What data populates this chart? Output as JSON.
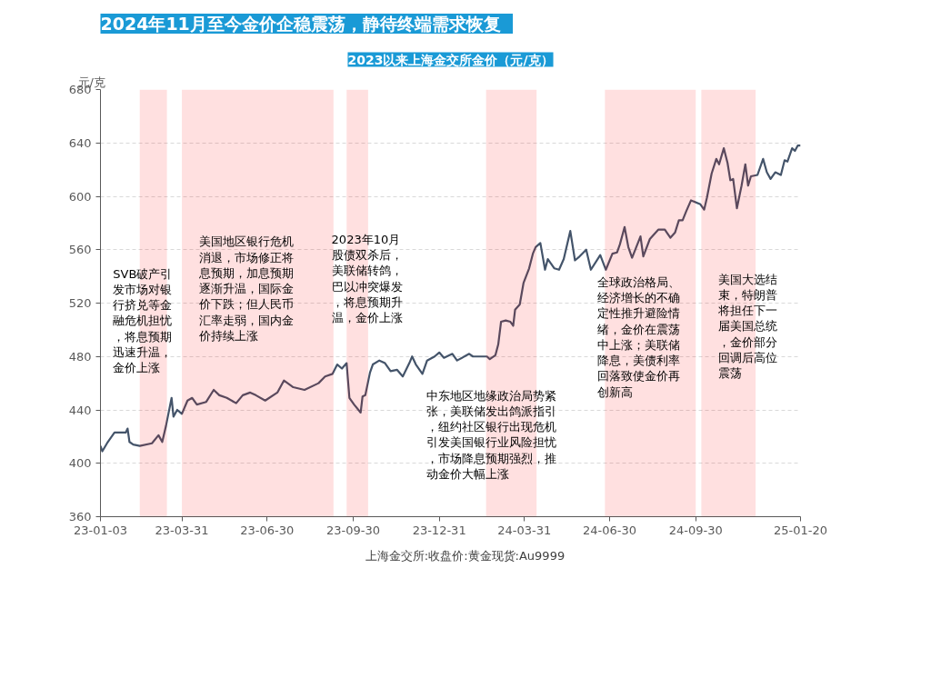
{
  "chart_data": {
    "type": "line",
    "title": "2024年11月至今金价企稳震荡，静待终端需求恢复",
    "subtitle": "2023以来上海金交所金价（元/克）",
    "ylabel": "元/克",
    "x": [
      "2023-01-03",
      "2023-01-05",
      "2023-01-10",
      "2023-01-18",
      "2023-01-30",
      "2023-02-01",
      "2023-02-03",
      "2023-02-07",
      "2023-02-14",
      "2023-02-27",
      "2023-03-06",
      "2023-03-10",
      "2023-03-14",
      "2023-03-20",
      "2023-03-22",
      "2023-03-26",
      "2023-03-31",
      "2023-04-06",
      "2023-04-11",
      "2023-04-16",
      "2023-04-26",
      "2023-05-04",
      "2023-05-10",
      "2023-05-18",
      "2023-05-28",
      "2023-06-04",
      "2023-06-12",
      "2023-06-18",
      "2023-06-28",
      "2023-07-11",
      "2023-07-18",
      "2023-07-28",
      "2023-08-09",
      "2023-08-24",
      "2023-08-31",
      "2023-09-08",
      "2023-09-13",
      "2023-09-18",
      "2023-09-23",
      "2023-09-26",
      "2023-10-01",
      "2023-10-08",
      "2023-10-10",
      "2023-10-13",
      "2023-10-18",
      "2023-10-21",
      "2023-10-28",
      "2023-11-03",
      "2023-11-09",
      "2023-11-16",
      "2023-11-22",
      "2023-11-29",
      "2023-12-02",
      "2023-12-06",
      "2023-12-13",
      "2023-12-18",
      "2023-12-26",
      "2023-12-31",
      "2024-01-05",
      "2024-01-14",
      "2024-01-19",
      "2024-02-01",
      "2024-02-05",
      "2024-02-20",
      "2024-02-23",
      "2024-02-29",
      "2024-03-03",
      "2024-03-06",
      "2024-03-11",
      "2024-03-16",
      "2024-03-19",
      "2024-03-21",
      "2024-03-26",
      "2024-03-30",
      "2024-04-05",
      "2024-04-09",
      "2024-04-12",
      "2024-04-17",
      "2024-04-22",
      "2024-04-25",
      "2024-05-02",
      "2024-05-07",
      "2024-05-12",
      "2024-05-19",
      "2024-05-24",
      "2024-05-29",
      "2024-06-05",
      "2024-06-10",
      "2024-06-20",
      "2024-06-26",
      "2024-07-03",
      "2024-07-08",
      "2024-07-11",
      "2024-07-16",
      "2024-07-20",
      "2024-07-24",
      "2024-08-02",
      "2024-08-05",
      "2024-08-12",
      "2024-08-21",
      "2024-08-28",
      "2024-09-03",
      "2024-09-08",
      "2024-09-12",
      "2024-09-16",
      "2024-09-20",
      "2024-09-25",
      "2024-10-05",
      "2024-10-09",
      "2024-10-12",
      "2024-10-17",
      "2024-10-22",
      "2024-10-25",
      "2024-10-30",
      "2024-11-03",
      "2024-11-06",
      "2024-11-09",
      "2024-11-13",
      "2024-11-18",
      "2024-11-22",
      "2024-11-25",
      "2024-11-28",
      "2024-12-05",
      "2024-12-11",
      "2024-12-15",
      "2024-12-19",
      "2024-12-24",
      "2024-12-30",
      "2025-01-03",
      "2025-01-06",
      "2025-01-11",
      "2025-01-14",
      "2025-01-17",
      "2025-01-20"
    ],
    "series": [
      {
        "name": "上海金交所:收盘价:黄金现货:Au9999",
        "color": "#44546a",
        "values": [
          413,
          409,
          415,
          423,
          423,
          426,
          416,
          414,
          413,
          415,
          421,
          416,
          428,
          449,
          435,
          440,
          437,
          447,
          449,
          444,
          446,
          455,
          451,
          449,
          445,
          451,
          453,
          451,
          447,
          453,
          462,
          457,
          455,
          460,
          465,
          467,
          474,
          471,
          475,
          449,
          444,
          438,
          450,
          451,
          468,
          474,
          477,
          475,
          469,
          470,
          465,
          475,
          480,
          474,
          467,
          477,
          480,
          483,
          479,
          482,
          477,
          482,
          480,
          480,
          478,
          481,
          489,
          506,
          507,
          506,
          503,
          515,
          519,
          535,
          546,
          557,
          562,
          565,
          545,
          553,
          546,
          545,
          553,
          574,
          552,
          555,
          560,
          545,
          556,
          545,
          557,
          558,
          564,
          577,
          562,
          554,
          570,
          555,
          568,
          575,
          575,
          569,
          573,
          582,
          582,
          589,
          597,
          594,
          590,
          599,
          617,
          628,
          624,
          636,
          625,
          612,
          613,
          591,
          608,
          624,
          608,
          615,
          616,
          628,
          618,
          613,
          618,
          616,
          627,
          626,
          636,
          634,
          638,
          638
        ]
      }
    ],
    "xlim": [
      "2023-01-03",
      "2025-01-20"
    ],
    "xticks": [
      {
        "value": "2023-01-03",
        "label": "23-01-03"
      },
      {
        "value": "2023-03-31",
        "label": "23-03-31"
      },
      {
        "value": "2023-06-30",
        "label": "23-06-30"
      },
      {
        "value": "2023-09-30",
        "label": "23-09-30"
      },
      {
        "value": "2023-12-31",
        "label": "23-12-31"
      },
      {
        "value": "2024-03-31",
        "label": "24-03-31"
      },
      {
        "value": "2024-06-30",
        "label": "24-06-30"
      },
      {
        "value": "2024-09-30",
        "label": "24-09-30"
      },
      {
        "value": "2025-01-20",
        "label": "25-01-20"
      }
    ],
    "ylim": [
      360,
      680
    ],
    "yticks": [
      360,
      400,
      440,
      480,
      520,
      560,
      600,
      640,
      680
    ],
    "grid": "y",
    "legend": "bottom",
    "marker": "none",
    "line_style": "solid",
    "bands": [
      {
        "axis": "x",
        "from": "2023-02-14",
        "to": "2023-03-15",
        "color": "#ff0000"
      },
      {
        "axis": "x",
        "from": "2023-03-31",
        "to": "2023-09-09",
        "color": "#ff0000"
      },
      {
        "axis": "x",
        "from": "2023-09-23",
        "to": "2023-10-16",
        "color": "#ff0000"
      },
      {
        "axis": "x",
        "from": "2024-02-19",
        "to": "2024-04-13",
        "color": "#ff0000"
      },
      {
        "axis": "x",
        "from": "2024-06-25",
        "to": "2024-09-30",
        "color": "#ff0000"
      },
      {
        "axis": "x",
        "from": "2024-10-06",
        "to": "2024-12-03",
        "color": "#ff0000"
      }
    ],
    "annotations": [
      "SVB破产引发市场对银行挤兑等金融危机担忧，将息预期迅速升温，金价上涨",
      "美国地区银行危机消退，市场修正将息预期，加息预期逐渐升温，国际金价下跌；但人民币汇率走弱，国内金价持续上涨",
      "2023年10月股债双杀后，美联储转鸽，巴以冲突爆发，将息预期升温，金价上涨",
      "中东地区地缘政治局势紧张，美联储发出鸽派指引，纽约社区银行出现危机引发美国银行业风险担忧，市场降息预期强烈，推动金价大幅上涨",
      "全球政治格局、经济增长的不确定性推升避险情绪，金价在震荡中上涨；美联储降息，美债利率回落致使金价再创新高",
      "美国大选结束，特朗普将担任下一届美国总统，金价部分回调后高位震荡"
    ]
  }
}
